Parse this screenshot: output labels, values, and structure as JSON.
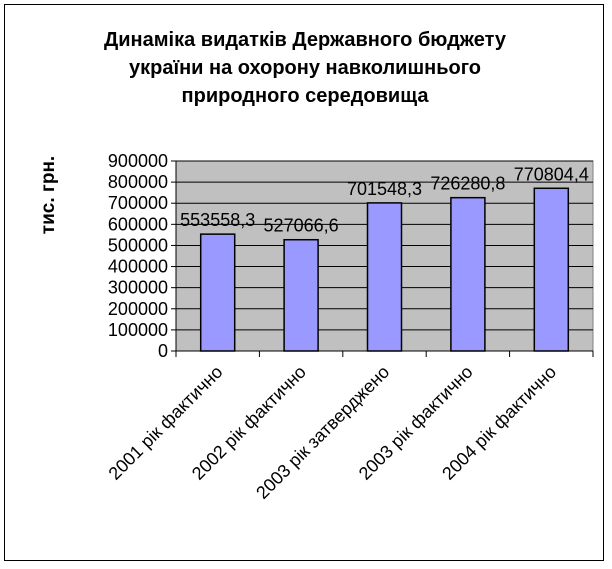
{
  "chart_data": {
    "type": "bar",
    "title": "Динаміка видатків Державного бюджету україни на охорону навколишнього природного середовища",
    "title_lines": [
      "Динаміка видатків Державного бюджету",
      "україни на охорону навколишнього",
      "природного середовища"
    ],
    "xlabel": "",
    "ylabel": "тис. грн.",
    "categories": [
      "2001 рік фактично",
      "2002 рік фактично",
      "2003 рік затверджено",
      "2003 рік фактично",
      "2004 рік фактично"
    ],
    "values": [
      553558.3,
      527066.6,
      701548.3,
      726280.8,
      770804.4
    ],
    "data_labels": [
      "553558,3",
      "527066,6",
      "701548,3",
      "726280,8",
      "770804,4"
    ],
    "ylim": [
      0,
      900000
    ],
    "yticks": [
      "0",
      "100000",
      "200000",
      "300000",
      "400000",
      "500000",
      "600000",
      "700000",
      "800000",
      "900000"
    ],
    "grid": true,
    "legend": "none",
    "colors": {
      "bar": "#9999FF",
      "plot_background": "#C0C0C0",
      "gridline": "#000000"
    }
  }
}
